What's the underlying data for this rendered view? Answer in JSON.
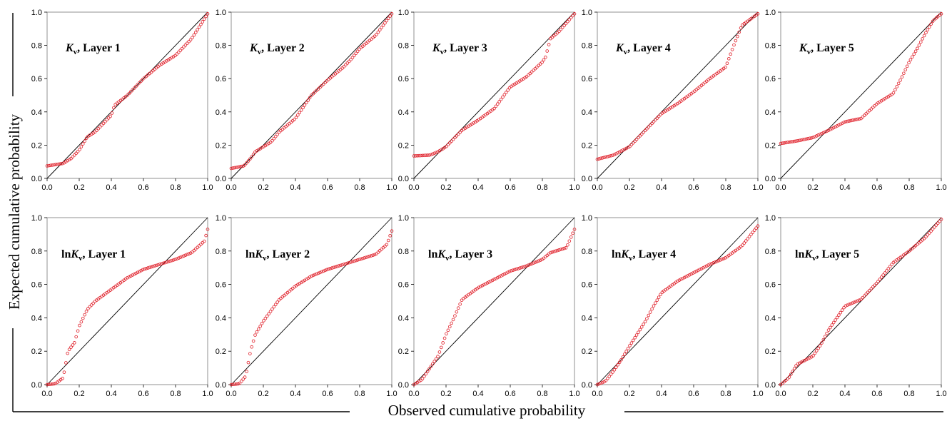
{
  "figure": {
    "xlabel": "Observed cumulative probability",
    "ylabel": "Expected cumulative probability"
  },
  "colors": {
    "points": "#e0202a",
    "axes": "#000000",
    "line": "#000000"
  },
  "chart_data": [
    {
      "type": "scatter",
      "panel_label": {
        "var": "K",
        "sub": "v",
        "rest": ", Layer 1",
        "ln": false
      },
      "xlim": [
        0,
        1
      ],
      "ylim": [
        0,
        1
      ],
      "xticks": [
        "0.0",
        "0.2",
        "0.4",
        "0.6",
        "0.8",
        "1.0"
      ],
      "yticks": [
        "0.0",
        "0.2",
        "0.4",
        "0.6",
        "0.8",
        "1.0"
      ],
      "reference_line": [
        [
          0,
          0
        ],
        [
          1,
          1
        ]
      ],
      "curve": [
        [
          0,
          0.075
        ],
        [
          0.1,
          0.09
        ],
        [
          0.15,
          0.12
        ],
        [
          0.2,
          0.17
        ],
        [
          0.25,
          0.25
        ],
        [
          0.3,
          0.28
        ],
        [
          0.35,
          0.33
        ],
        [
          0.4,
          0.38
        ],
        [
          0.42,
          0.44
        ],
        [
          0.5,
          0.5
        ],
        [
          0.6,
          0.6
        ],
        [
          0.7,
          0.68
        ],
        [
          0.8,
          0.74
        ],
        [
          0.9,
          0.84
        ],
        [
          1.0,
          0.99
        ]
      ]
    },
    {
      "type": "scatter",
      "panel_label": {
        "var": "K",
        "sub": "v",
        "rest": ", Layer 2",
        "ln": false
      },
      "xlim": [
        0,
        1
      ],
      "ylim": [
        0,
        1
      ],
      "xticks": [
        "0.0",
        "0.2",
        "0.4",
        "0.6",
        "0.8",
        "1.0"
      ],
      "yticks": [
        "0.0",
        "0.2",
        "0.4",
        "0.6",
        "0.8",
        "1.0"
      ],
      "reference_line": [
        [
          0,
          0
        ],
        [
          1,
          1
        ]
      ],
      "curve": [
        [
          0,
          0.06
        ],
        [
          0.08,
          0.075
        ],
        [
          0.12,
          0.12
        ],
        [
          0.15,
          0.16
        ],
        [
          0.25,
          0.22
        ],
        [
          0.3,
          0.28
        ],
        [
          0.4,
          0.36
        ],
        [
          0.5,
          0.5
        ],
        [
          0.6,
          0.59
        ],
        [
          0.7,
          0.67
        ],
        [
          0.75,
          0.72
        ],
        [
          0.8,
          0.78
        ],
        [
          0.9,
          0.86
        ],
        [
          1.0,
          0.99
        ]
      ]
    },
    {
      "type": "scatter",
      "panel_label": {
        "var": "K",
        "sub": "v",
        "rest": ", Layer 3",
        "ln": false
      },
      "xlim": [
        0,
        1
      ],
      "ylim": [
        0,
        1
      ],
      "xticks": [
        "0.0",
        "0.2",
        "0.4",
        "0.6",
        "0.8",
        "1.0"
      ],
      "yticks": [
        "0.0",
        "0.2",
        "0.4",
        "0.6",
        "0.8",
        "1.0"
      ],
      "reference_line": [
        [
          0,
          0
        ],
        [
          1,
          1
        ]
      ],
      "curve": [
        [
          0,
          0.135
        ],
        [
          0.1,
          0.14
        ],
        [
          0.15,
          0.16
        ],
        [
          0.2,
          0.19
        ],
        [
          0.3,
          0.29
        ],
        [
          0.4,
          0.35
        ],
        [
          0.5,
          0.42
        ],
        [
          0.6,
          0.55
        ],
        [
          0.7,
          0.61
        ],
        [
          0.8,
          0.7
        ],
        [
          0.82,
          0.73
        ],
        [
          0.85,
          0.84
        ],
        [
          0.9,
          0.88
        ],
        [
          1.0,
          0.99
        ]
      ]
    },
    {
      "type": "scatter",
      "panel_label": {
        "var": "K",
        "sub": "v",
        "rest": ", Layer 4",
        "ln": false
      },
      "xlim": [
        0,
        1
      ],
      "ylim": [
        0,
        1
      ],
      "xticks": [
        "0.0",
        "0.2",
        "0.4",
        "0.6",
        "0.8",
        "1.0"
      ],
      "yticks": [
        "0.0",
        "0.2",
        "0.4",
        "0.6",
        "0.8",
        "1.0"
      ],
      "reference_line": [
        [
          0,
          0
        ],
        [
          1,
          1
        ]
      ],
      "curve": [
        [
          0,
          0.115
        ],
        [
          0.1,
          0.14
        ],
        [
          0.2,
          0.19
        ],
        [
          0.3,
          0.29
        ],
        [
          0.4,
          0.39
        ],
        [
          0.5,
          0.45
        ],
        [
          0.6,
          0.52
        ],
        [
          0.7,
          0.6
        ],
        [
          0.8,
          0.67
        ],
        [
          0.85,
          0.8
        ],
        [
          0.9,
          0.92
        ],
        [
          1.0,
          0.99
        ]
      ]
    },
    {
      "type": "scatter",
      "panel_label": {
        "var": "K",
        "sub": "v",
        "rest": ", Layer 5",
        "ln": false
      },
      "xlim": [
        0,
        1
      ],
      "ylim": [
        0,
        1
      ],
      "xticks": [
        "0.0",
        "0.2",
        "0.4",
        "0.6",
        "0.8",
        "1.0"
      ],
      "yticks": [
        "0.0",
        "0.2",
        "0.4",
        "0.6",
        "0.8",
        "1.0"
      ],
      "reference_line": [
        [
          0,
          0
        ],
        [
          1,
          1
        ]
      ],
      "curve": [
        [
          0,
          0.21
        ],
        [
          0.1,
          0.225
        ],
        [
          0.2,
          0.245
        ],
        [
          0.3,
          0.29
        ],
        [
          0.4,
          0.34
        ],
        [
          0.5,
          0.36
        ],
        [
          0.6,
          0.45
        ],
        [
          0.7,
          0.51
        ],
        [
          0.75,
          0.6
        ],
        [
          0.8,
          0.7
        ],
        [
          0.85,
          0.78
        ],
        [
          0.9,
          0.87
        ],
        [
          0.95,
          0.95
        ],
        [
          1.0,
          0.99
        ]
      ]
    },
    {
      "type": "scatter",
      "panel_label": {
        "var": "K",
        "sub": "v",
        "rest": ", Layer 1",
        "ln": true,
        "prefix": "ln"
      },
      "xlim": [
        0,
        1
      ],
      "ylim": [
        0,
        1
      ],
      "xticks": [
        "0.0",
        "0.2",
        "0.4",
        "0.6",
        "0.8",
        "1.0"
      ],
      "yticks": [
        "0.0",
        "0.2",
        "0.4",
        "0.6",
        "0.8",
        "1.0"
      ],
      "reference_line": [
        [
          0,
          0
        ],
        [
          1,
          1
        ]
      ],
      "curve": [
        [
          0,
          0.0
        ],
        [
          0.05,
          0.005
        ],
        [
          0.1,
          0.04
        ],
        [
          0.13,
          0.2
        ],
        [
          0.17,
          0.25
        ],
        [
          0.2,
          0.35
        ],
        [
          0.25,
          0.45
        ],
        [
          0.3,
          0.5
        ],
        [
          0.4,
          0.57
        ],
        [
          0.5,
          0.64
        ],
        [
          0.6,
          0.69
        ],
        [
          0.7,
          0.72
        ],
        [
          0.8,
          0.75
        ],
        [
          0.9,
          0.79
        ],
        [
          0.98,
          0.86
        ],
        [
          1.0,
          0.93
        ]
      ]
    },
    {
      "type": "scatter",
      "panel_label": {
        "var": "K",
        "sub": "v",
        "rest": ", Layer 2",
        "ln": true,
        "prefix": "ln"
      },
      "xlim": [
        0,
        1
      ],
      "ylim": [
        0,
        1
      ],
      "xticks": [
        "0.0",
        "0.2",
        "0.4",
        "0.6",
        "0.8",
        "1.0"
      ],
      "yticks": [
        "0.0",
        "0.2",
        "0.4",
        "0.6",
        "0.8",
        "1.0"
      ],
      "reference_line": [
        [
          0,
          0
        ],
        [
          1,
          1
        ]
      ],
      "curve": [
        [
          0,
          0.0
        ],
        [
          0.05,
          0.005
        ],
        [
          0.09,
          0.05
        ],
        [
          0.12,
          0.2
        ],
        [
          0.15,
          0.3
        ],
        [
          0.2,
          0.38
        ],
        [
          0.3,
          0.51
        ],
        [
          0.4,
          0.59
        ],
        [
          0.5,
          0.65
        ],
        [
          0.6,
          0.69
        ],
        [
          0.7,
          0.72
        ],
        [
          0.8,
          0.75
        ],
        [
          0.9,
          0.78
        ],
        [
          0.97,
          0.84
        ],
        [
          1.0,
          0.92
        ]
      ]
    },
    {
      "type": "scatter",
      "panel_label": {
        "var": "K",
        "sub": "v",
        "rest": ", Layer 3",
        "ln": true,
        "prefix": "ln"
      },
      "xlim": [
        0,
        1
      ],
      "ylim": [
        0,
        1
      ],
      "xticks": [
        "0.0",
        "0.2",
        "0.4",
        "0.6",
        "0.8",
        "1.0"
      ],
      "yticks": [
        "0.0",
        "0.2",
        "0.4",
        "0.6",
        "0.8",
        "1.0"
      ],
      "reference_line": [
        [
          0,
          0
        ],
        [
          1,
          1
        ]
      ],
      "curve": [
        [
          0,
          0.0
        ],
        [
          0.05,
          0.03
        ],
        [
          0.1,
          0.1
        ],
        [
          0.15,
          0.17
        ],
        [
          0.2,
          0.3
        ],
        [
          0.25,
          0.4
        ],
        [
          0.3,
          0.51
        ],
        [
          0.4,
          0.58
        ],
        [
          0.5,
          0.63
        ],
        [
          0.6,
          0.68
        ],
        [
          0.7,
          0.71
        ],
        [
          0.8,
          0.75
        ],
        [
          0.85,
          0.79
        ],
        [
          0.95,
          0.82
        ],
        [
          1.0,
          0.93
        ]
      ]
    },
    {
      "type": "scatter",
      "panel_label": {
        "var": "K",
        "sub": "v",
        "rest": ", Layer 4",
        "ln": true,
        "prefix": "ln"
      },
      "xlim": [
        0,
        1
      ],
      "ylim": [
        0,
        1
      ],
      "xticks": [
        "0.0",
        "0.2",
        "0.4",
        "0.6",
        "0.8",
        "1.0"
      ],
      "yticks": [
        "0.0",
        "0.2",
        "0.4",
        "0.6",
        "0.8",
        "1.0"
      ],
      "reference_line": [
        [
          0,
          0
        ],
        [
          1,
          1
        ]
      ],
      "curve": [
        [
          0,
          0.0
        ],
        [
          0.05,
          0.02
        ],
        [
          0.1,
          0.08
        ],
        [
          0.15,
          0.15
        ],
        [
          0.2,
          0.23
        ],
        [
          0.3,
          0.38
        ],
        [
          0.35,
          0.47
        ],
        [
          0.4,
          0.55
        ],
        [
          0.5,
          0.62
        ],
        [
          0.6,
          0.67
        ],
        [
          0.7,
          0.72
        ],
        [
          0.8,
          0.76
        ],
        [
          0.9,
          0.83
        ],
        [
          1.0,
          0.95
        ]
      ]
    },
    {
      "type": "scatter",
      "panel_label": {
        "var": "K",
        "sub": "v",
        "rest": ", Layer 5",
        "ln": true,
        "prefix": "ln"
      },
      "xlim": [
        0,
        1
      ],
      "ylim": [
        0,
        1
      ],
      "xticks": [
        "0.0",
        "0.2",
        "0.4",
        "0.6",
        "0.8",
        "1.0"
      ],
      "yticks": [
        "0.0",
        "0.2",
        "0.4",
        "0.6",
        "0.8",
        "1.0"
      ],
      "reference_line": [
        [
          0,
          0
        ],
        [
          1,
          1
        ]
      ],
      "curve": [
        [
          0,
          0.0
        ],
        [
          0.05,
          0.04
        ],
        [
          0.1,
          0.12
        ],
        [
          0.2,
          0.17
        ],
        [
          0.25,
          0.24
        ],
        [
          0.3,
          0.33
        ],
        [
          0.35,
          0.4
        ],
        [
          0.4,
          0.47
        ],
        [
          0.5,
          0.51
        ],
        [
          0.6,
          0.61
        ],
        [
          0.7,
          0.73
        ],
        [
          0.8,
          0.8
        ],
        [
          0.9,
          0.88
        ],
        [
          1.0,
          0.99
        ]
      ]
    }
  ]
}
